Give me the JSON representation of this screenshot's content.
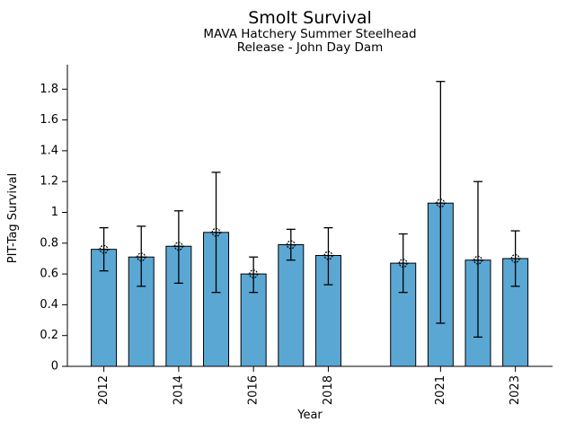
{
  "chart_data": {
    "type": "bar",
    "title": "Smolt Survival",
    "subtitle1": "MAVA Hatchery Summer Steelhead",
    "subtitle2": "Release - John Day Dam",
    "xlabel": "Year",
    "ylabel": "PIT-Tag Survival",
    "xlim": [
      2011,
      2024
    ],
    "ylim": [
      0,
      1.96
    ],
    "grid": false,
    "legend": "none",
    "bar_color": "#5BA7D4",
    "bar_edge_color": "#000000",
    "error_color": "#000000",
    "marker": "circled-plus",
    "ytick_labels": [
      "0",
      "0.2",
      "0.4",
      "0.6",
      "0.8",
      "1",
      "1.2",
      "1.4",
      "1.6",
      "1.8"
    ],
    "ytick_values": [
      0,
      0.2,
      0.4,
      0.6,
      0.8,
      1.0,
      1.2,
      1.4,
      1.6,
      1.8
    ],
    "xtick_labels": [
      "2012",
      "2014",
      "2016",
      "2018",
      "2021",
      "2023"
    ],
    "xtick_values": [
      2012,
      2014,
      2016,
      2018,
      2021,
      2023
    ],
    "series": [
      {
        "name": "PIT-Tag Survival",
        "points": [
          {
            "year": 2012,
            "value": 0.76,
            "err_low": 0.62,
            "err_high": 0.9
          },
          {
            "year": 2013,
            "value": 0.71,
            "err_low": 0.52,
            "err_high": 0.91
          },
          {
            "year": 2014,
            "value": 0.78,
            "err_low": 0.54,
            "err_high": 1.01
          },
          {
            "year": 2015,
            "value": 0.87,
            "err_low": 0.48,
            "err_high": 1.26
          },
          {
            "year": 2016,
            "value": 0.6,
            "err_low": 0.48,
            "err_high": 0.71
          },
          {
            "year": 2017,
            "value": 0.79,
            "err_low": 0.69,
            "err_high": 0.89
          },
          {
            "year": 2018,
            "value": 0.72,
            "err_low": 0.53,
            "err_high": 0.9
          },
          {
            "year": 2020,
            "value": 0.67,
            "err_low": 0.48,
            "err_high": 0.86
          },
          {
            "year": 2021,
            "value": 1.06,
            "err_low": 0.28,
            "err_high": 1.85
          },
          {
            "year": 2022,
            "value": 0.69,
            "err_low": 0.19,
            "err_high": 1.2
          },
          {
            "year": 2023,
            "value": 0.7,
            "err_low": 0.52,
            "err_high": 0.88
          }
        ]
      }
    ]
  }
}
